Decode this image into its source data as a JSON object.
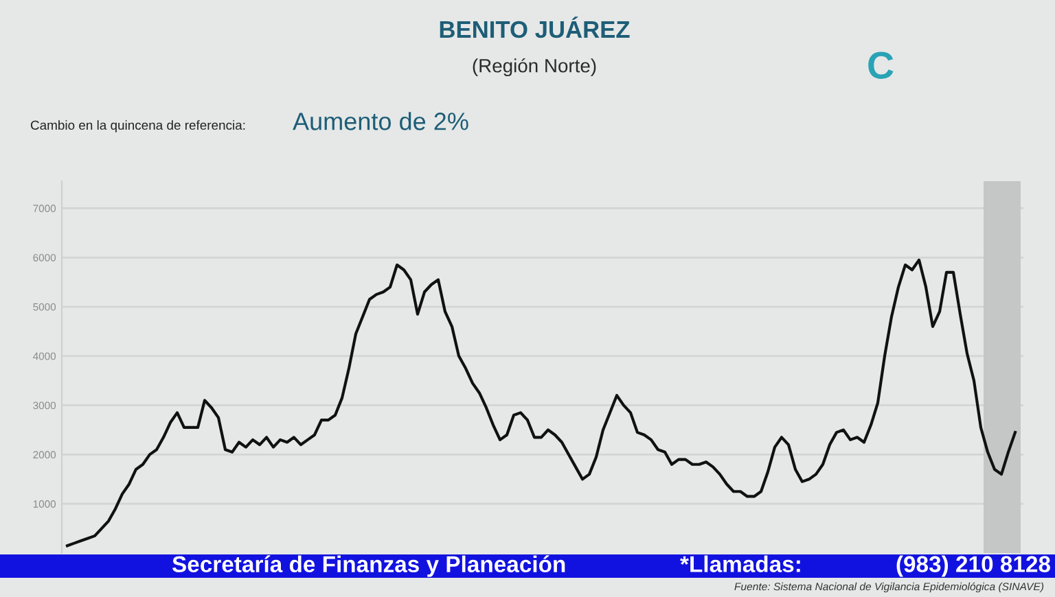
{
  "chart_data": {
    "type": "line",
    "title": "BENITO JUÁREZ",
    "subtitle": "(Región Norte)",
    "annotations": [
      "C",
      "Cambio en la quincena de referencia:",
      "Aumento de 2%",
      "Secretaría de Finanzas y Planeación",
      "*Llamadas:",
      "(983) 210 8128",
      "Fuente: Sistema Nacional de Vigilancia Epidemiológica (SINAVE)"
    ],
    "categories": [
      null,
      null,
      null,
      null,
      null,
      null,
      null,
      null,
      null,
      null,
      null,
      null,
      null,
      null,
      null,
      null,
      null,
      null,
      null,
      null,
      null,
      null,
      null,
      null,
      null,
      null,
      null,
      null,
      null,
      null,
      null,
      null,
      null,
      null,
      null,
      null,
      null,
      null,
      null,
      null,
      null,
      null,
      null,
      null,
      null,
      null,
      null,
      null,
      null,
      null,
      null,
      null,
      null,
      null,
      null,
      null,
      null,
      null,
      null,
      null,
      null,
      null,
      null,
      null,
      null,
      null,
      null,
      null,
      null,
      null,
      null,
      null,
      null,
      null,
      null,
      null,
      null,
      null,
      null,
      null,
      null,
      null,
      null,
      null,
      null,
      null,
      null,
      null,
      null,
      null,
      null,
      null,
      null,
      null,
      null,
      null,
      null,
      null,
      null,
      null,
      null,
      null,
      null,
      null,
      null,
      null,
      null,
      null,
      null,
      null,
      null,
      null,
      null,
      null,
      null,
      null,
      null,
      null,
      null,
      null,
      null,
      null,
      null,
      null,
      null,
      null,
      null,
      null,
      null,
      null,
      null,
      null,
      null,
      null,
      null,
      null,
      null,
      null,
      null
    ],
    "values": [
      150,
      200,
      250,
      300,
      350,
      500,
      650,
      900,
      1200,
      1400,
      1700,
      1800,
      2000,
      2100,
      2350,
      2650,
      2850,
      2550,
      2550,
      2550,
      3100,
      2950,
      2750,
      2100,
      2050,
      2250,
      2150,
      2300,
      2200,
      2350,
      2150,
      2300,
      2250,
      2350,
      2200,
      2300,
      2400,
      2700,
      2700,
      2800,
      3150,
      3750,
      4450,
      4800,
      5150,
      5250,
      5300,
      5400,
      5850,
      5750,
      5550,
      4850,
      5300,
      5450,
      5550,
      4900,
      4600,
      4000,
      3750,
      3450,
      3250,
      2950,
      2600,
      2300,
      2400,
      2800,
      2850,
      2700,
      2350,
      2350,
      2500,
      2400,
      2250,
      2000,
      1750,
      1500,
      1600,
      1950,
      2500,
      2850,
      3200,
      3000,
      2850,
      2450,
      2400,
      2300,
      2100,
      2050,
      1800,
      1900,
      1900,
      1800,
      1800,
      1850,
      1750,
      1600,
      1400,
      1250,
      1250,
      1150,
      1150,
      1250,
      1650,
      2150,
      2350,
      2200,
      1700,
      1450,
      1500,
      1600,
      1800,
      2200,
      2450,
      2500,
      2300,
      2350,
      2250,
      2600,
      3050,
      4000,
      4800,
      5400,
      5850,
      5750,
      5950,
      5400,
      4600,
      4900,
      5700,
      5700,
      4850,
      4050,
      3500,
      2550,
      2050,
      1700,
      1600,
      2050,
      2450
    ],
    "color": "#111111",
    "ylim": [
      0,
      7550
    ],
    "yticks": [
      1000,
      2000,
      3000,
      4000,
      5000,
      6000,
      7000
    ],
    "grid": "y",
    "tick_labels": "y",
    "line_style": "solid"
  }
}
